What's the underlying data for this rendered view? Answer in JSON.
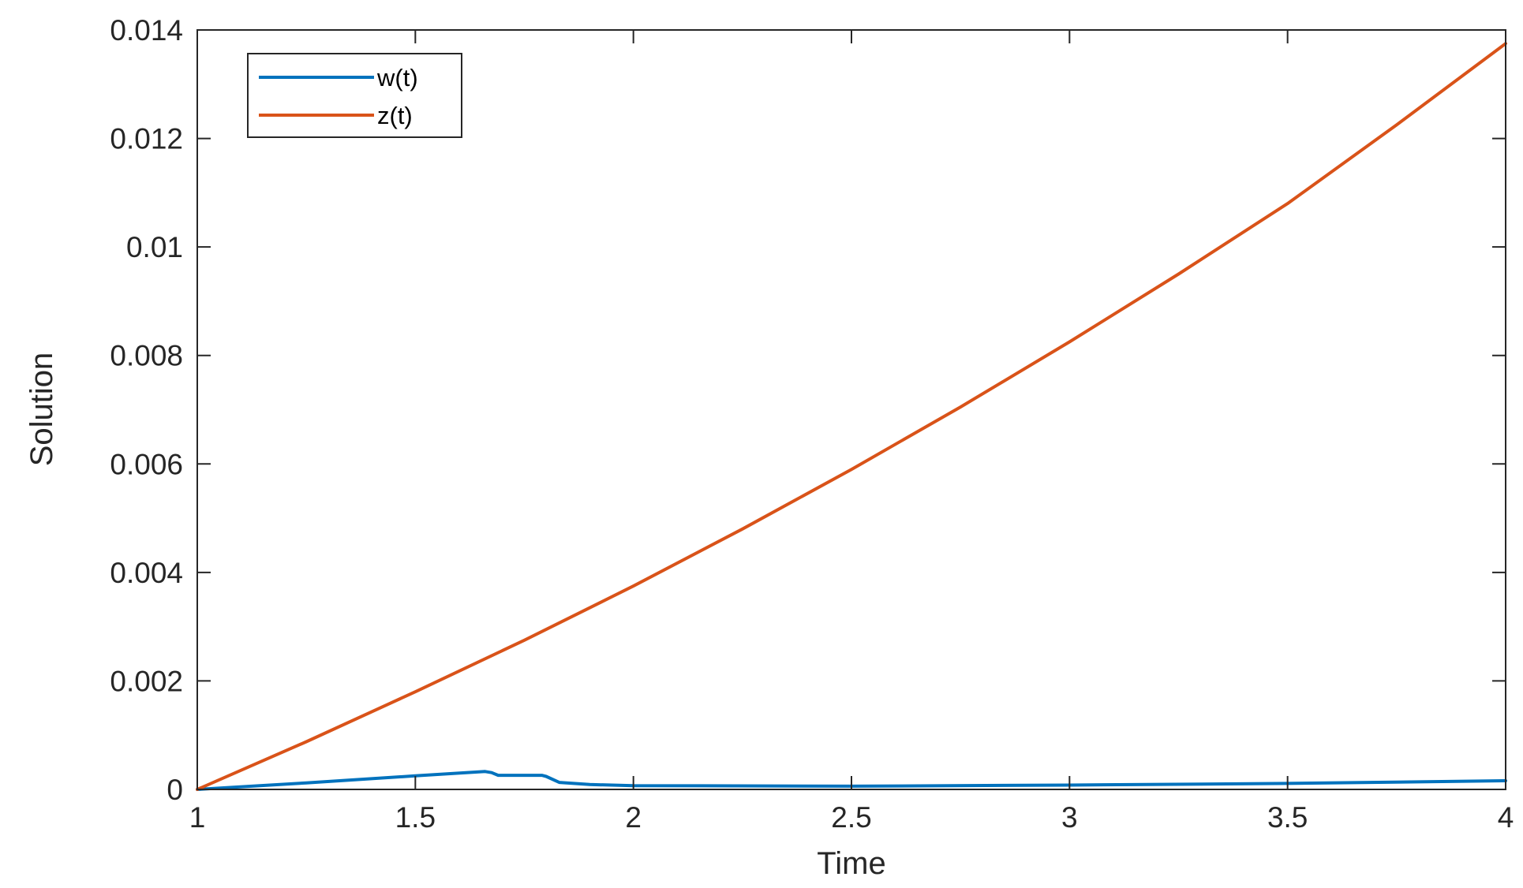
{
  "chart_data": {
    "type": "line",
    "xlabel": "Time",
    "ylabel": "Solution",
    "xlim": [
      1,
      4
    ],
    "ylim": [
      0,
      0.014
    ],
    "xticks": [
      1,
      1.5,
      2,
      2.5,
      3,
      3.5,
      4
    ],
    "xtick_labels": [
      "1",
      "1.5",
      "2",
      "2.5",
      "3",
      "3.5",
      "4"
    ],
    "yticks": [
      0,
      0.002,
      0.004,
      0.006,
      0.008,
      0.01,
      0.012,
      0.014
    ],
    "ytick_labels": [
      "0",
      "0.002",
      "0.004",
      "0.006",
      "0.008",
      "0.01",
      "0.012",
      "0.014"
    ],
    "grid": false,
    "legend_position": "top-left",
    "series": [
      {
        "name": "w(t)",
        "color": "#0072BD",
        "x": [
          1,
          1.25,
          1.5,
          1.66,
          1.675,
          1.69,
          1.79,
          1.8,
          1.83,
          1.9,
          2.0,
          2.5,
          3.0,
          3.5,
          4.0
        ],
        "y": [
          0,
          0.00012,
          0.00025,
          0.00033,
          0.00031,
          0.00026,
          0.00026,
          0.00024,
          0.00013,
          9e-05,
          7e-05,
          6e-05,
          8e-05,
          0.00011,
          0.00016
        ]
      },
      {
        "name": "z(t)",
        "color": "#D95319",
        "x": [
          1,
          1.25,
          1.5,
          1.75,
          2.0,
          2.25,
          2.5,
          2.75,
          3.0,
          3.25,
          3.5,
          3.75,
          4.0
        ],
        "y": [
          0,
          0.00088,
          0.0018,
          0.00275,
          0.00375,
          0.0048,
          0.0059,
          0.00705,
          0.00825,
          0.0095,
          0.0108,
          0.01225,
          0.01375
        ]
      }
    ]
  }
}
